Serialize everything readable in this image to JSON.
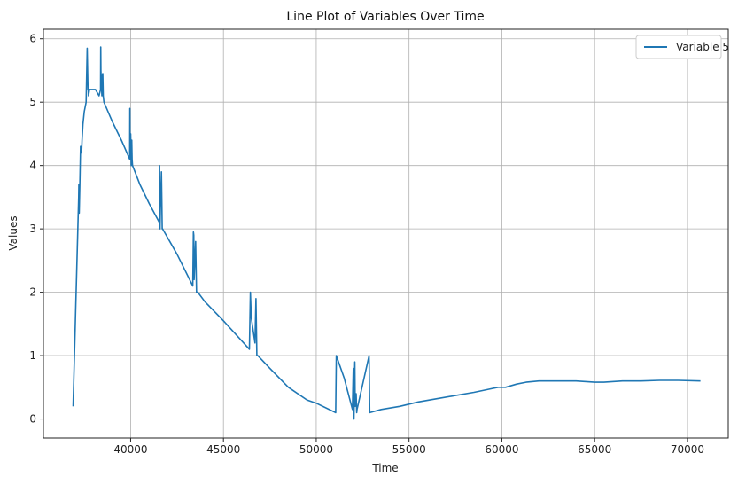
{
  "chart_data": {
    "type": "line",
    "title": "Line Plot of Variables Over Time",
    "xlabel": "Time",
    "ylabel": "Values",
    "xlim": [
      35300,
      72200
    ],
    "ylim": [
      -0.3,
      6.15
    ],
    "xticks": [
      40000,
      45000,
      50000,
      55000,
      60000,
      65000,
      70000
    ],
    "yticks": [
      0,
      1,
      2,
      3,
      4,
      5,
      6
    ],
    "grid": true,
    "legend_position": "top-right",
    "series": [
      {
        "name": "Variable 5",
        "color": "#1f77b4",
        "x": [
          36900,
          37200,
          37210,
          37230,
          37260,
          37300,
          37340,
          37360,
          37380,
          37430,
          37500,
          37600,
          37660,
          37700,
          37720,
          37730,
          37780,
          37900,
          38100,
          38300,
          38380,
          38390,
          38400,
          38450,
          38470,
          38500,
          38520,
          38560,
          39000,
          39500,
          39950,
          39960,
          39970,
          40000,
          40030,
          40060,
          40080,
          40100,
          40500,
          41000,
          41550,
          41560,
          41580,
          41600,
          41660,
          41700,
          41720,
          42500,
          43350,
          43380,
          43400,
          43420,
          43500,
          43550,
          43580,
          43620,
          44000,
          45000,
          46400,
          46450,
          46500,
          46600,
          46700,
          46750,
          46800,
          46850,
          47500,
          48500,
          49500,
          50000,
          51050,
          51080,
          51500,
          51950,
          52000,
          52030,
          52080,
          52100,
          52150,
          52180,
          52200,
          52850,
          52880,
          53500,
          54500,
          55500,
          56500,
          57500,
          58500,
          59300,
          59800,
          60200,
          60800,
          61300,
          62000,
          63000,
          64000,
          65000,
          65500,
          66500,
          67500,
          68500,
          69500,
          70700
        ],
        "values": [
          0.2,
          3.5,
          3.7,
          3.25,
          3.7,
          4.3,
          4.2,
          4.25,
          4.4,
          4.65,
          4.85,
          5.0,
          5.85,
          5.2,
          5.2,
          5.1,
          5.2,
          5.2,
          5.2,
          5.1,
          5.2,
          5.87,
          5.5,
          5.1,
          5.4,
          5.45,
          5.1,
          5.0,
          4.7,
          4.4,
          4.1,
          4.9,
          4.1,
          4.5,
          4.0,
          4.4,
          4.1,
          4.0,
          3.7,
          3.4,
          3.1,
          4.0,
          3.0,
          3.3,
          3.9,
          3.0,
          3.0,
          2.6,
          2.1,
          2.95,
          2.9,
          2.2,
          2.8,
          2.0,
          2.0,
          2.0,
          1.85,
          1.55,
          1.1,
          2.0,
          1.6,
          1.4,
          1.2,
          1.9,
          1.0,
          1.0,
          0.8,
          0.5,
          0.3,
          0.25,
          0.1,
          1.0,
          0.65,
          0.15,
          0.8,
          0.0,
          0.9,
          0.2,
          0.4,
          0.1,
          0.15,
          1.0,
          0.1,
          0.15,
          0.2,
          0.27,
          0.32,
          0.37,
          0.42,
          0.47,
          0.5,
          0.5,
          0.55,
          0.58,
          0.6,
          0.6,
          0.6,
          0.58,
          0.58,
          0.6,
          0.6,
          0.61,
          0.61,
          0.6
        ]
      }
    ]
  }
}
